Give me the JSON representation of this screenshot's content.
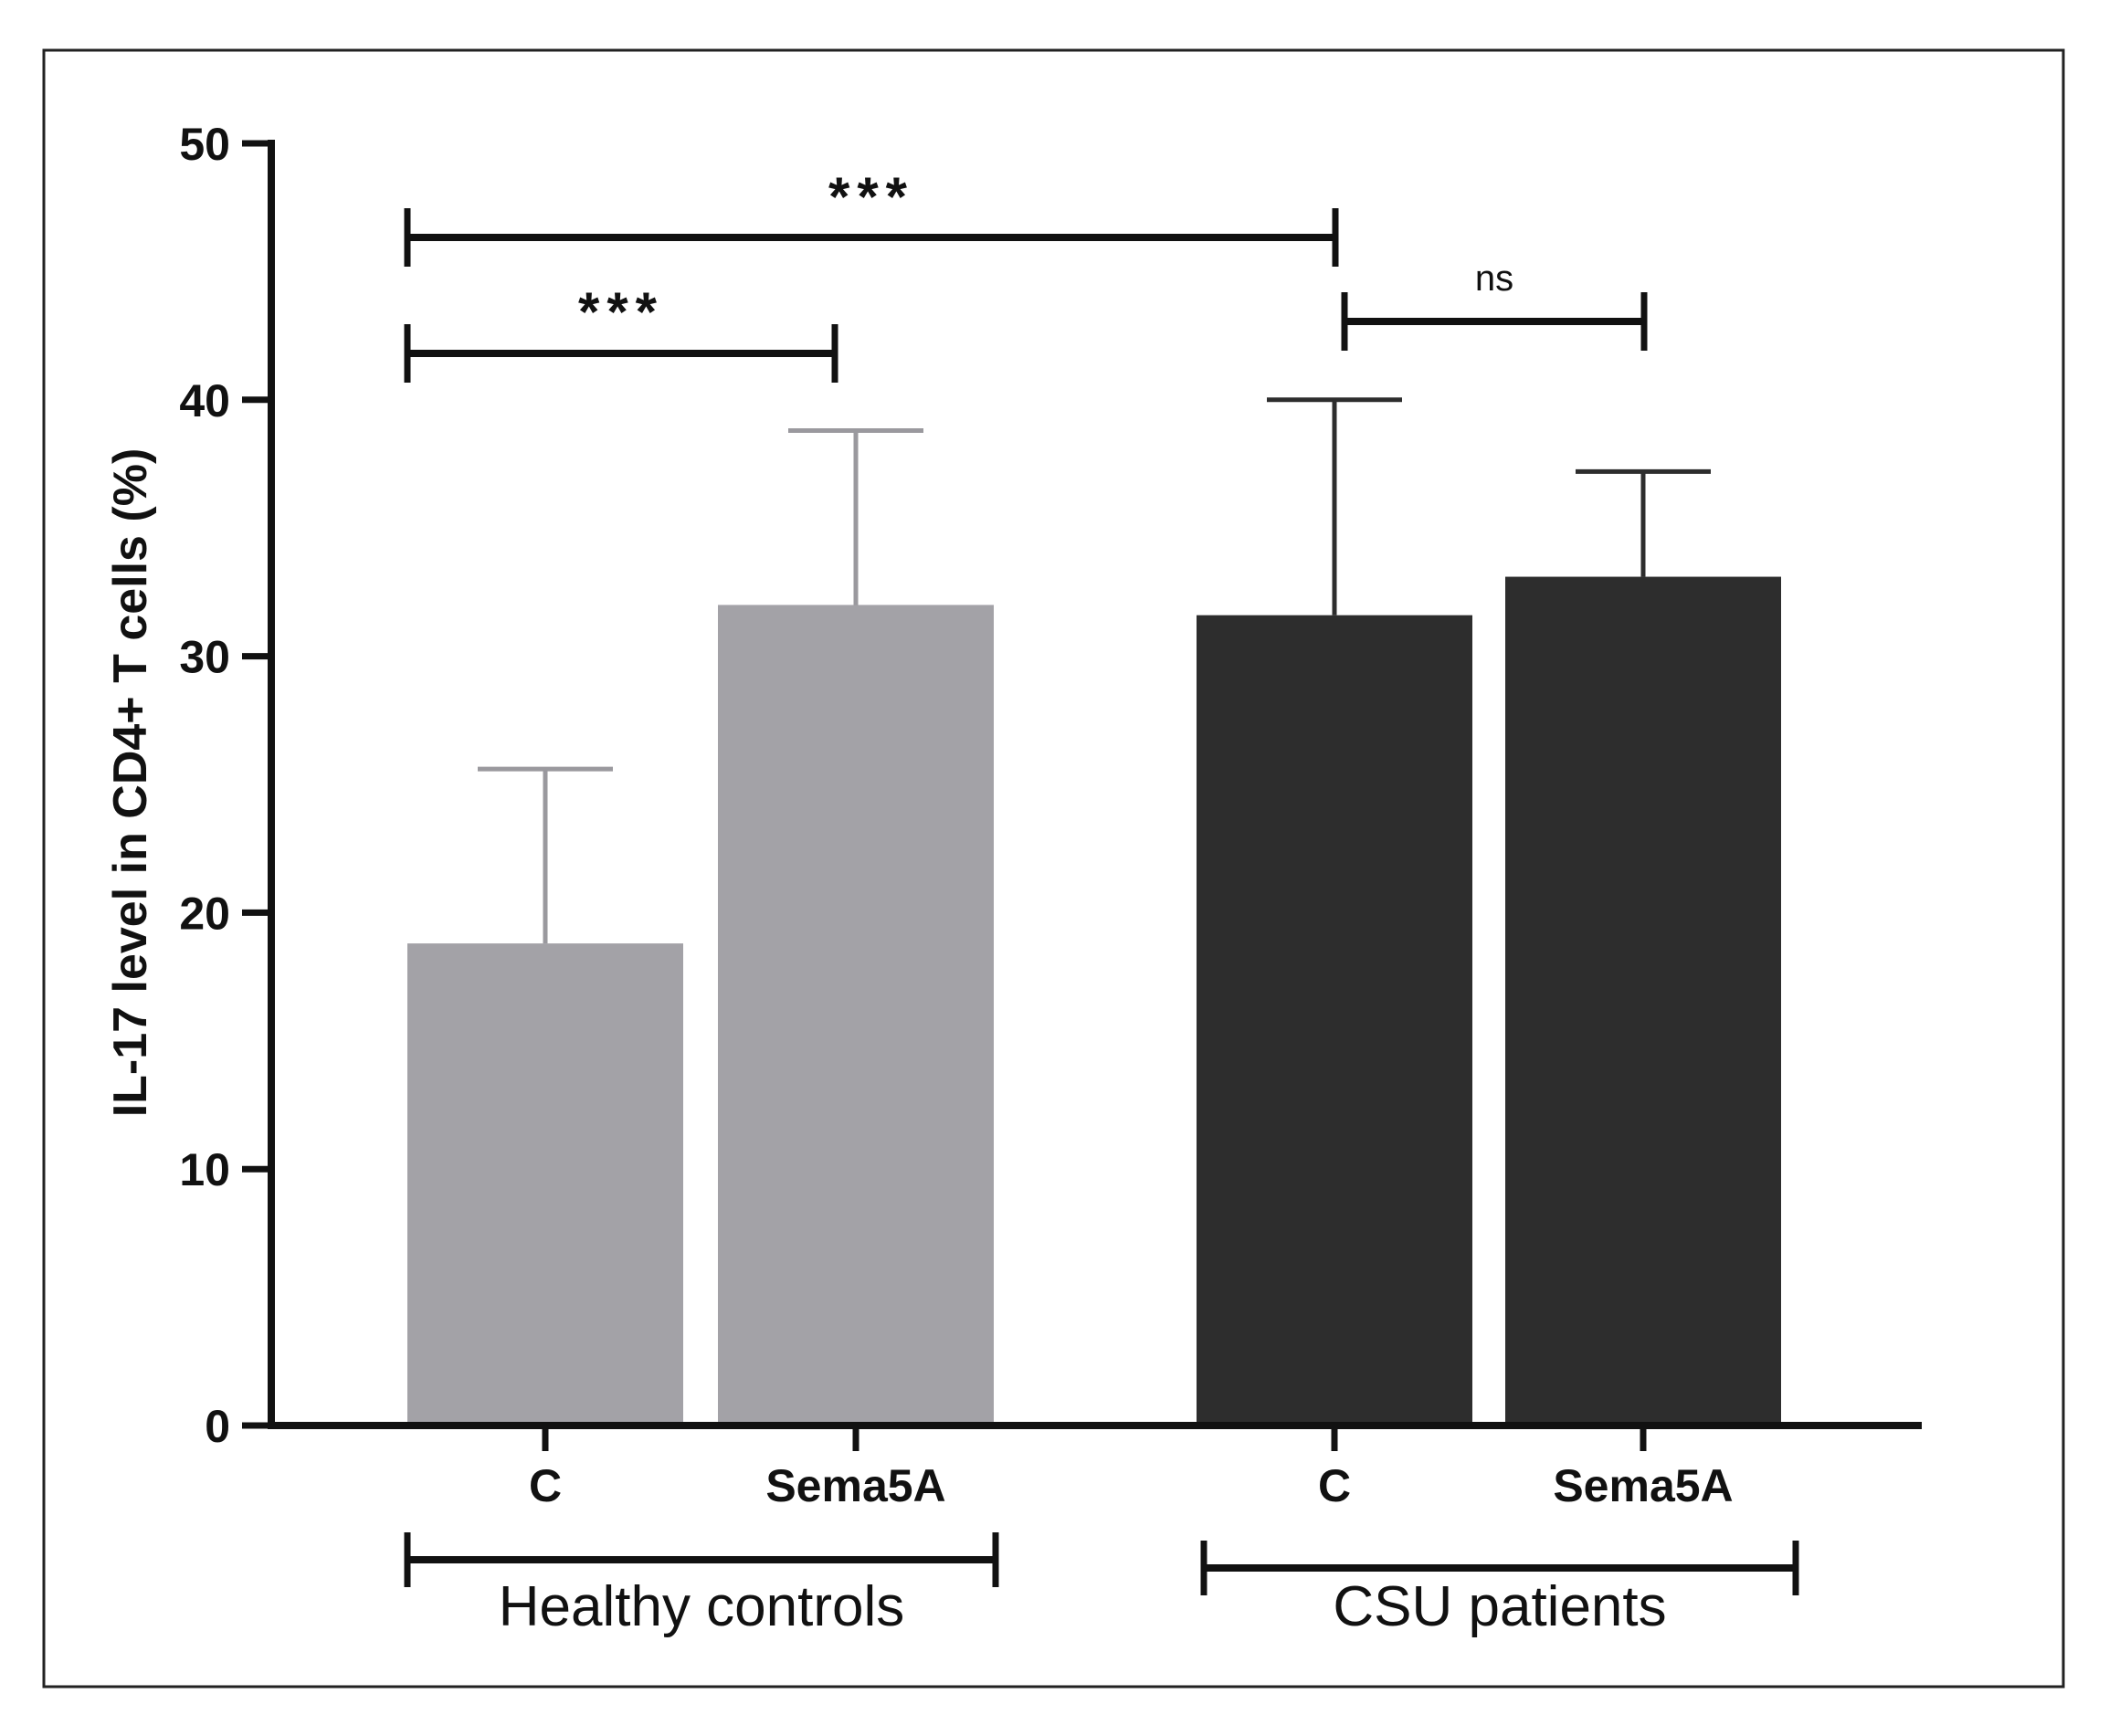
{
  "chart_data": {
    "type": "bar",
    "title": "",
    "xlabel": "",
    "ylabel": "IL-17 level in CD4+ T cells (%)",
    "ylim": [
      0,
      50
    ],
    "yticks": [
      0,
      10,
      20,
      30,
      40,
      50
    ],
    "grid": false,
    "legend": "none",
    "bars": [
      {
        "group": "Healthy controls",
        "category": "C",
        "value": 18.8,
        "error": 6.8,
        "color": "#a3a2a7"
      },
      {
        "group": "Healthy controls",
        "category": "Sema5A",
        "value": 32.0,
        "error": 6.8,
        "color": "#a3a2a7"
      },
      {
        "group": "CSU patients",
        "category": "C",
        "value": 31.6,
        "error": 8.4,
        "color": "#2d2d2d"
      },
      {
        "group": "CSU patients",
        "category": "Sema5A",
        "value": 33.1,
        "error": 4.1,
        "color": "#2d2d2d"
      }
    ],
    "groups": [
      "Healthy controls",
      "CSU patients"
    ],
    "significance": [
      {
        "from": 0,
        "to": 2,
        "label": "***"
      },
      {
        "from": 0,
        "to": 1,
        "label": "***"
      },
      {
        "from": 2,
        "to": 3,
        "label": "ns"
      }
    ]
  }
}
